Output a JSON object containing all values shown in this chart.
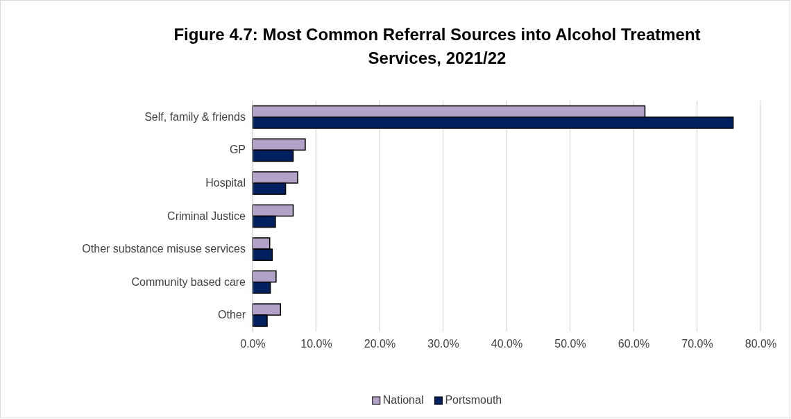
{
  "chart_data": {
    "type": "bar",
    "orientation": "horizontal",
    "title": "Figure 4.7: Most Common Referral Sources into Alcohol Treatment Services, 2021/22",
    "categories": [
      "Self, family & friends",
      "GP",
      "Hospital",
      "Criminal Justice",
      "Other substance misuse services",
      "Community based care",
      "Other"
    ],
    "series": [
      {
        "name": "National",
        "color": "#b3a2c7",
        "values": [
          61.8,
          8.3,
          7.1,
          6.4,
          2.7,
          3.7,
          4.4
        ]
      },
      {
        "name": "Portsmouth",
        "color": "#002060",
        "values": [
          75.7,
          6.4,
          5.2,
          3.6,
          3.1,
          2.8,
          2.3
        ]
      }
    ],
    "xlim": [
      0,
      80
    ],
    "xticks": [
      {
        "value": 0,
        "label": "0.0%"
      },
      {
        "value": 10,
        "label": "10.0%"
      },
      {
        "value": 20,
        "label": "20.0%"
      },
      {
        "value": 30,
        "label": "30.0%"
      },
      {
        "value": 40,
        "label": "40.0%"
      },
      {
        "value": 50,
        "label": "50.0%"
      },
      {
        "value": 60,
        "label": "60.0%"
      },
      {
        "value": 70,
        "label": "70.0%"
      },
      {
        "value": 80,
        "label": "80.0%"
      }
    ],
    "grid": "x",
    "legend": "bottom"
  }
}
